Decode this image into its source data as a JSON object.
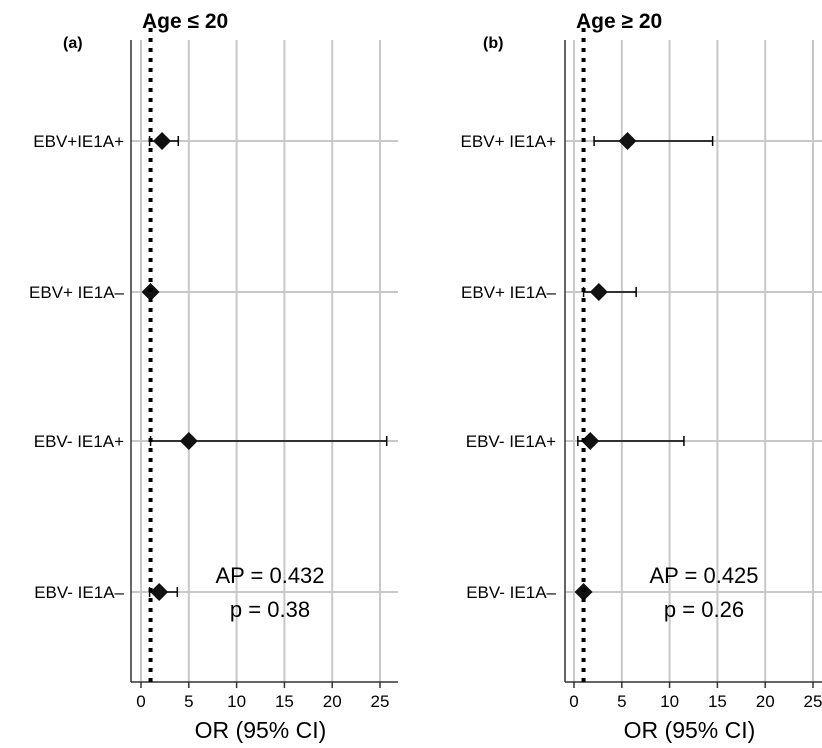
{
  "chart_data": [
    {
      "type": "forest",
      "panel_label": "(a)",
      "title": "Age ≤ 20",
      "xlabel": "OR (95% CI)",
      "ylabel": "",
      "xlim": [
        -1,
        27
      ],
      "xticks": [
        0,
        5,
        10,
        15,
        20,
        25
      ],
      "grid": true,
      "reference_line": 1,
      "categories": [
        "EBV+IE1A+",
        "EBV+ IE1A–",
        "EBV- IE1A+",
        "EBV- IE1A–"
      ],
      "or": [
        2.2,
        1.0,
        5.0,
        1.9
      ],
      "ci_low": [
        0.9,
        1.0,
        1.0,
        0.9
      ],
      "ci_high": [
        3.9,
        1.0,
        25.7,
        3.8
      ],
      "annotation": [
        "AP = 0.432",
        "p = 0.38"
      ]
    },
    {
      "type": "forest",
      "panel_label": "(b)",
      "title": "Age ≥ 20",
      "xlabel": "OR (95% CI)",
      "ylabel": "",
      "xlim": [
        -1,
        27
      ],
      "xticks": [
        0,
        5,
        10,
        15,
        20,
        25
      ],
      "grid": true,
      "reference_line": 1,
      "categories": [
        "EBV+ IE1A+",
        "EBV+ IE1A–",
        "EBV- IE1A+",
        "EBV- IE1A–"
      ],
      "or": [
        5.6,
        2.6,
        1.7,
        1.0
      ],
      "ci_low": [
        2.1,
        1.0,
        0.4,
        0.9
      ],
      "ci_high": [
        14.5,
        6.5,
        11.5,
        1.2
      ],
      "annotation": [
        "AP = 0.425",
        "p = 0.26"
      ]
    }
  ]
}
